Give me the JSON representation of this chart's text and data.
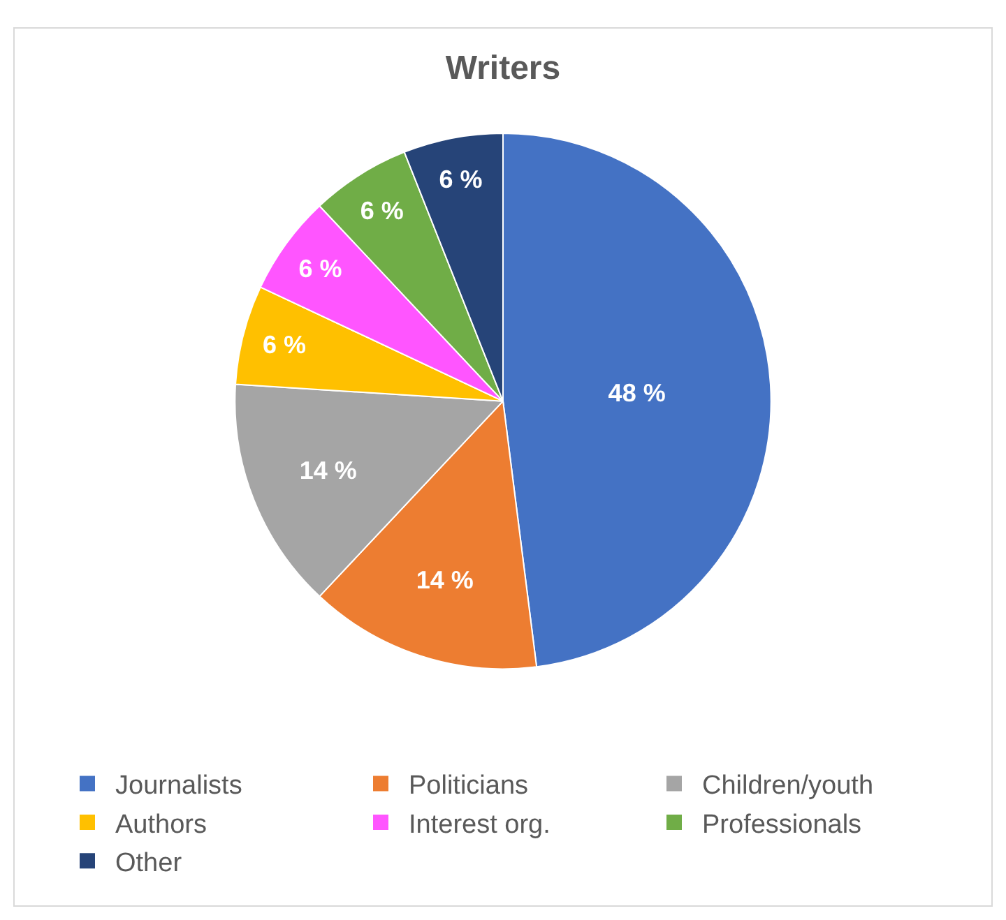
{
  "chart_data": {
    "type": "pie",
    "title": "Writers",
    "categories": [
      "Journalists",
      "Politicians",
      "Children/youth",
      "Authors",
      "Interest org.",
      "Professionals",
      "Other"
    ],
    "values": [
      48,
      14,
      14,
      6,
      6,
      6,
      6
    ],
    "value_labels": [
      "48 %",
      "14 %",
      "14 %",
      "6 %",
      "6 %",
      "6 %",
      "6 %"
    ],
    "colors": [
      "#4472c4",
      "#ed7d31",
      "#a5a5a5",
      "#ffc000",
      "#ff55ff",
      "#70ad47",
      "#264478"
    ],
    "legend": "bottom"
  }
}
